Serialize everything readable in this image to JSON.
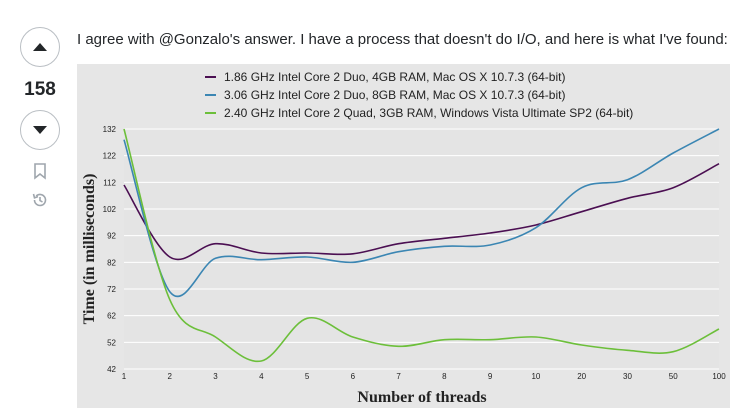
{
  "post": {
    "score": "158",
    "text": "I agree with @Gonzalo's answer. I have a process that doesn't do I/O, and here is what I've found:"
  },
  "icons": {
    "upvote": "triangle-up-icon",
    "downvote": "triangle-down-icon",
    "bookmark": "bookmark-icon",
    "history": "history-icon"
  },
  "chart_data": {
    "type": "line",
    "title": "",
    "xlabel": "Number of threads",
    "ylabel": "Time (in milliseconds)",
    "categories": [
      "1",
      "2",
      "3",
      "4",
      "5",
      "6",
      "7",
      "8",
      "9",
      "10",
      "20",
      "30",
      "50",
      "100"
    ],
    "yticks": [
      "132",
      "122",
      "112",
      "102",
      "92",
      "82",
      "72",
      "62",
      "52",
      "42"
    ],
    "ylim": [
      42,
      132
    ],
    "grid": true,
    "legend_position": "top",
    "series": [
      {
        "name": "1.86 GHz Intel Core 2 Duo, 4GB RAM, Mac OS X 10.7.3 (64-bit)",
        "color": "#4b0f52",
        "values": [
          111,
          84,
          89,
          85.5,
          85.5,
          85.2,
          89,
          91,
          93,
          96,
          101,
          106,
          110,
          119
        ]
      },
      {
        "name": "3.06 GHz Intel Core 2 Duo, 8GB RAM, Mac OS X 10.7.3 (64-bit)",
        "color": "#3b86b3",
        "values": [
          128,
          71,
          83.5,
          83,
          84,
          82,
          86,
          88,
          88.5,
          95,
          110,
          113,
          123,
          132
        ]
      },
      {
        "name": "2.40 GHz Intel Core 2 Quad, 3GB RAM, Windows Vista Ultimate SP2 (64-bit)",
        "color": "#6cbf3a",
        "values": [
          132,
          68,
          54,
          45,
          61,
          54,
          50.5,
          53,
          53,
          54,
          51,
          49,
          48.5,
          57
        ]
      }
    ]
  }
}
